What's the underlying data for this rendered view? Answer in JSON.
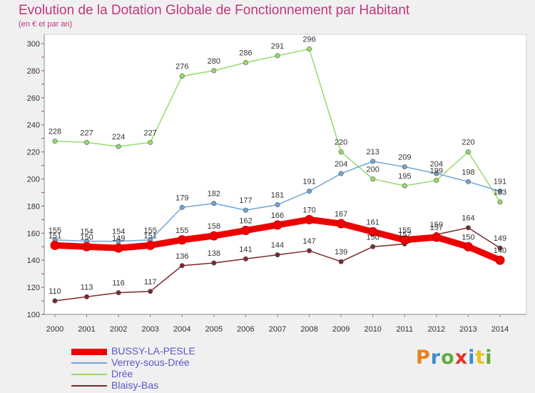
{
  "header": {
    "title": "Evolution de la Dotation Globale de Fonctionnement par Habitant",
    "subtitle": "(en € et par an)"
  },
  "logo": {
    "text": "Proxiti",
    "colors": [
      "#e8811a",
      "#3a8fd1",
      "#5cae3a",
      "#e2322a",
      "#3a8fd1",
      "#e8c21a",
      "#5cae3a"
    ]
  },
  "chart_data": {
    "type": "line",
    "x": [
      2000,
      2001,
      2002,
      2003,
      2004,
      2005,
      2006,
      2007,
      2008,
      2009,
      2010,
      2011,
      2012,
      2013,
      2014
    ],
    "ylim": [
      100,
      300
    ],
    "yticks": [
      100,
      120,
      140,
      160,
      180,
      200,
      220,
      240,
      260,
      280,
      300
    ],
    "grid": false,
    "legend_position": "bottom-left",
    "series": [
      {
        "name": "BUSSY-LA-PESLE",
        "color": "#ee0000",
        "thick": true,
        "values": [
          151,
          150,
          149,
          151,
          155,
          158,
          162,
          166,
          170,
          167,
          161,
          155,
          157,
          150,
          140
        ]
      },
      {
        "name": "Verrey-sous-Drée",
        "color": "#6fa6d6",
        "values": [
          155,
          154,
          154,
          155,
          179,
          182,
          177,
          181,
          191,
          204,
          213,
          209,
          204,
          198,
          191
        ]
      },
      {
        "name": "Drée",
        "color": "#94db6c",
        "values": [
          228,
          227,
          224,
          227,
          276,
          280,
          286,
          291,
          296,
          220,
          200,
          195,
          199,
          220,
          183
        ]
      },
      {
        "name": "Blaisy-Bas",
        "color": "#7a2a2a",
        "values": [
          110,
          113,
          116,
          117,
          136,
          138,
          141,
          144,
          147,
          139,
          150,
          152,
          159,
          164,
          149
        ]
      }
    ]
  }
}
